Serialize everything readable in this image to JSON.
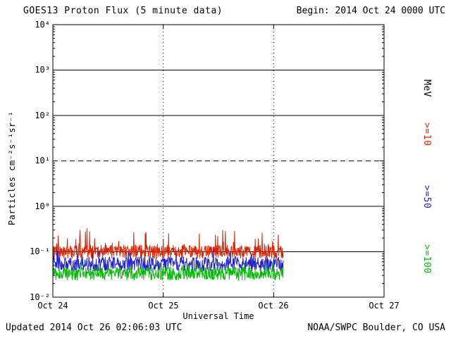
{
  "header": {
    "title": "GOES13 Proton Flux (5 minute data)",
    "begin_label": "Begin: 2014 Oct 24 0000 UTC"
  },
  "footer": {
    "updated": "Updated 2014 Oct 26 02:06:03 UTC",
    "credit": "NOAA/SWPC Boulder, CO USA"
  },
  "right_axis": {
    "unit_label": "MeV",
    "series_labels": [
      {
        "label": ">=10",
        "color": "#dd2200"
      },
      {
        "label": ">=50",
        "color": "#2222cc"
      },
      {
        "label": ">=100",
        "color": "#00bb00"
      }
    ]
  },
  "chart_data": {
    "type": "line",
    "title": "GOES13 Proton Flux (5 minute data)",
    "xlabel": "Universal Time",
    "ylabel": "Particles cm⁻²s⁻¹sr⁻¹",
    "x_tick_labels": [
      "Oct 24",
      "Oct 25",
      "Oct 26",
      "Oct 27"
    ],
    "x_range_days": [
      0,
      3
    ],
    "y_log10_range": [
      -2,
      4
    ],
    "y_tick_labels": [
      "10⁴",
      "10³",
      "10²",
      "10¹",
      "10⁰",
      "10⁻¹",
      "10⁻²"
    ],
    "y_tick_log10": [
      4,
      3,
      2,
      1,
      0,
      -1,
      -2
    ],
    "dashed_gridline_log10": 1,
    "vertical_gridlines_days": [
      1,
      2
    ],
    "grid": true,
    "legend_position": "right",
    "sample_interval_minutes": 5,
    "data_start_day": 0,
    "data_end_day": 2.087,
    "series": [
      {
        "name": ">=10 MeV",
        "color": "#dd2200",
        "base_log10": -1.0,
        "noise_log10": 0.3,
        "spike_probability": 0.1,
        "spike_max_log10": 0.4
      },
      {
        "name": ">=50 MeV",
        "color": "#2222cc",
        "base_log10": -1.27,
        "noise_log10": 0.32,
        "spike_probability": 0.06,
        "spike_max_log10": 0.22
      },
      {
        "name": ">=100 MeV",
        "color": "#00bb00",
        "base_log10": -1.48,
        "noise_log10": 0.3,
        "spike_probability": 0.05,
        "spike_max_log10": 0.15
      }
    ]
  }
}
